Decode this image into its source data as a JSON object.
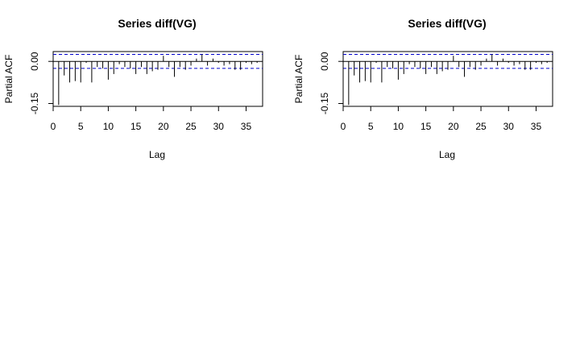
{
  "chart_data": [
    {
      "type": "bar",
      "title": "Series  diff(VG)",
      "xlabel": "Lag",
      "ylabel": "Partial ACF",
      "xlim": [
        0,
        38
      ],
      "ylim": [
        -0.16,
        0.035
      ],
      "xticks": [
        "0",
        "5",
        "10",
        "15",
        "20",
        "25",
        "30",
        "35"
      ],
      "yticks": [
        "-0.15",
        "0.00"
      ],
      "conf_band": 0.025,
      "conf_color": "#0000cc",
      "lags": [
        1,
        2,
        3,
        4,
        5,
        6,
        7,
        8,
        9,
        10,
        11,
        12,
        13,
        14,
        15,
        16,
        17,
        18,
        19,
        20,
        21,
        22,
        23,
        24,
        25,
        26,
        27,
        28,
        29,
        30,
        31,
        32,
        33,
        34,
        35,
        36,
        37
      ],
      "values": [
        -0.155,
        -0.05,
        -0.075,
        -0.07,
        -0.075,
        -0.005,
        -0.075,
        -0.02,
        -0.025,
        -0.065,
        -0.045,
        -0.01,
        -0.02,
        -0.025,
        -0.045,
        -0.02,
        -0.045,
        -0.035,
        -0.03,
        0.02,
        -0.02,
        -0.055,
        -0.02,
        -0.03,
        -0.015,
        0.01,
        0.025,
        -0.015,
        0.01,
        -0.005,
        -0.015,
        -0.01,
        -0.03,
        -0.03,
        -0.005,
        -0.01,
        -0.005
      ]
    },
    {
      "type": "bar",
      "title": "Series  diff(VG)",
      "xlabel": "Lag",
      "ylabel": "Partial ACF",
      "xlim": [
        0,
        38
      ],
      "ylim": [
        -0.16,
        0.035
      ],
      "xticks": [
        "0",
        "5",
        "10",
        "15",
        "20",
        "25",
        "30",
        "35"
      ],
      "yticks": [
        "-0.15",
        "0.00"
      ],
      "conf_band": 0.025,
      "conf_color": "#0000cc",
      "lags": [
        1,
        2,
        3,
        4,
        5,
        6,
        7,
        8,
        9,
        10,
        11,
        12,
        13,
        14,
        15,
        16,
        17,
        18,
        19,
        20,
        21,
        22,
        23,
        24,
        25,
        26,
        27,
        28,
        29,
        30,
        31,
        32,
        33,
        34,
        35,
        36,
        37
      ],
      "values": [
        -0.155,
        -0.05,
        -0.075,
        -0.07,
        -0.075,
        -0.005,
        -0.075,
        -0.02,
        -0.025,
        -0.065,
        -0.045,
        -0.01,
        -0.02,
        -0.025,
        -0.045,
        -0.02,
        -0.045,
        -0.035,
        -0.03,
        0.02,
        -0.02,
        -0.055,
        -0.02,
        -0.03,
        -0.015,
        0.01,
        0.025,
        -0.015,
        0.01,
        -0.005,
        -0.015,
        -0.01,
        -0.03,
        -0.03,
        -0.005,
        -0.01,
        -0.005
      ]
    }
  ]
}
